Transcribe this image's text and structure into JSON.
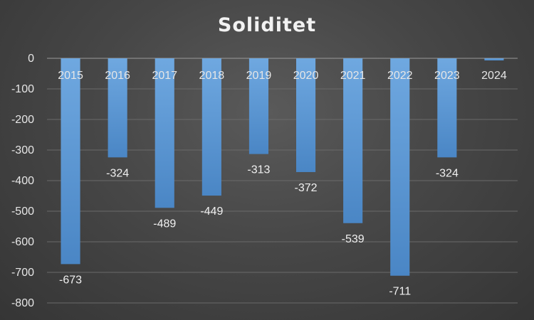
{
  "chart_data": {
    "type": "bar",
    "title": "Soliditet",
    "categories": [
      "2015",
      "2016",
      "2017",
      "2018",
      "2019",
      "2020",
      "2021",
      "2022",
      "2023",
      "2024"
    ],
    "values": [
      -673,
      -324,
      -489,
      -449,
      -313,
      -372,
      -539,
      -711,
      -324,
      -7
    ],
    "data_labels": [
      "-673",
      "-324",
      "-489",
      "-449",
      "-313",
      "-372",
      "-539",
      "-711",
      "-324",
      ""
    ],
    "ylim": [
      -800,
      0
    ],
    "yticks": [
      0,
      -100,
      -200,
      -300,
      -400,
      -500,
      -600,
      -700,
      -800
    ],
    "grid": true,
    "bar_color": "#5b9bd5"
  }
}
